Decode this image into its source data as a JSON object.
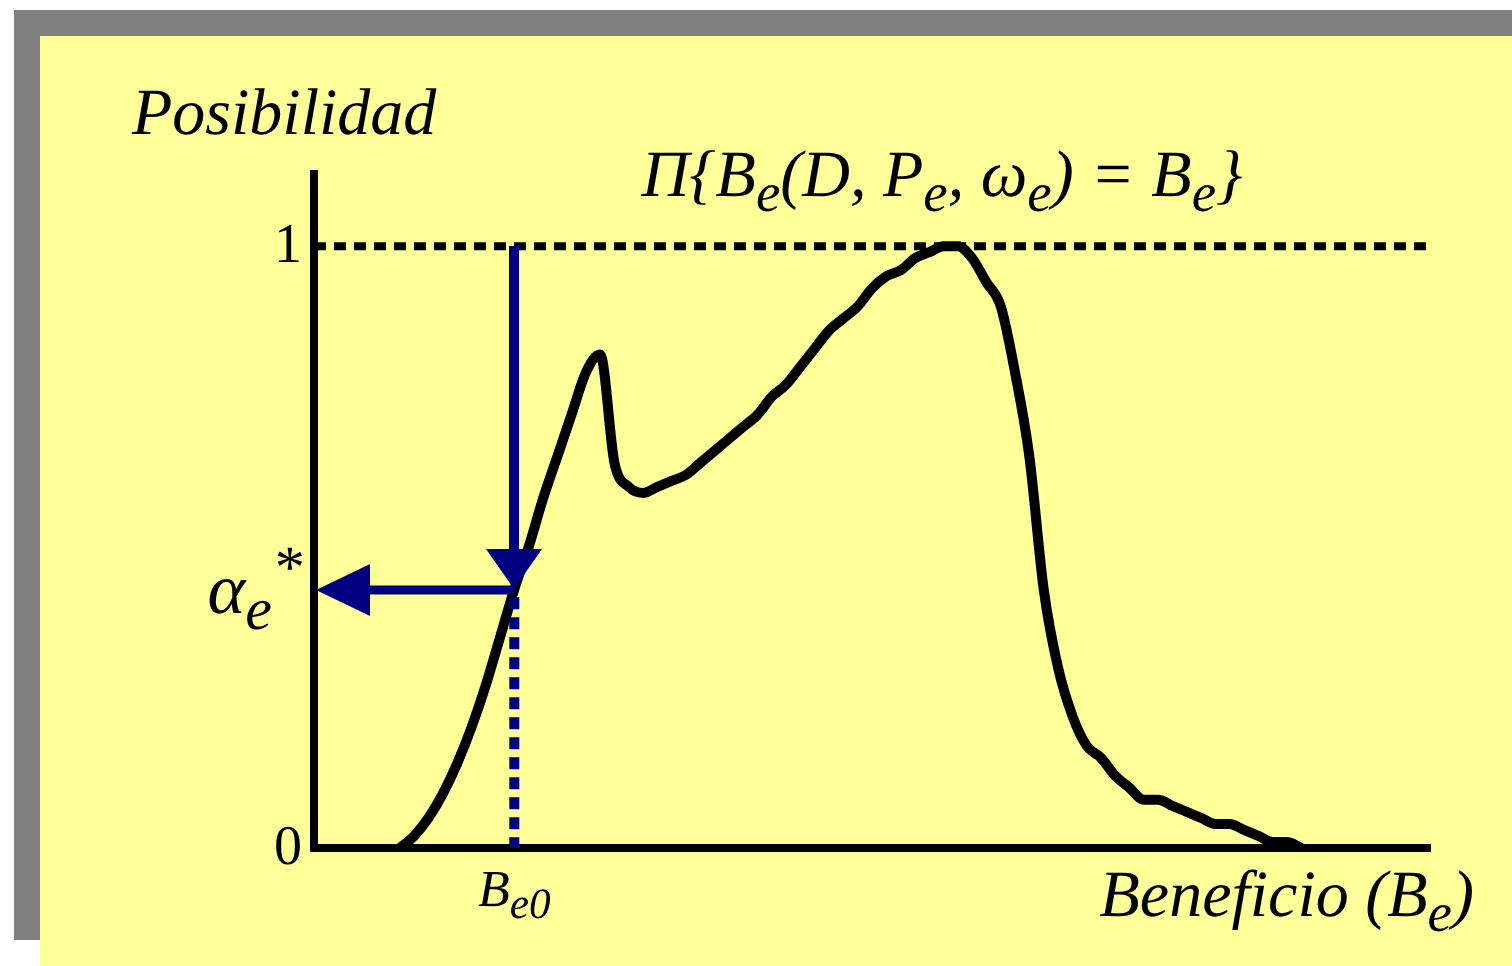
{
  "chart_data": {
    "type": "line",
    "title": "Π{B$_{e}$(D, P$_{e}$, ω$_{e}$) = B$_{e}$}",
    "ylabel": "Posibilidad",
    "xlabel": "Beneficio (B$_{e}$)",
    "categories": [
      null,
      null,
      null,
      null,
      null,
      null,
      null,
      null,
      null,
      null,
      null,
      null,
      null,
      null,
      "B$_{e0}$",
      null,
      null,
      null,
      null,
      null,
      null,
      null,
      null,
      null,
      null,
      null,
      null,
      null,
      null,
      null,
      null,
      null,
      null,
      null,
      null,
      null,
      null,
      null,
      null,
      null,
      null,
      null,
      null,
      null,
      null,
      null,
      null,
      null,
      null,
      null,
      null,
      null,
      null,
      null,
      null,
      null,
      null,
      null,
      null,
      null,
      null,
      null,
      null,
      null,
      null,
      null,
      null,
      null,
      null,
      null,
      null,
      null,
      null,
      null,
      null,
      null,
      null,
      null,
      null
    ],
    "values": [
      null,
      null,
      null,
      null,
      null,
      null,
      0,
      0.02,
      0.05,
      0.09,
      0.14,
      0.2,
      0.27,
      0.35,
      0.43,
      0.5,
      0.58,
      0.65,
      0.72,
      0.79,
      0.82,
      0.64,
      0.6,
      0.59,
      0.6,
      0.61,
      0.62,
      0.64,
      0.66,
      0.68,
      0.7,
      0.72,
      0.75,
      0.77,
      0.8,
      0.83,
      0.86,
      0.88,
      0.9,
      0.93,
      0.95,
      0.96,
      0.98,
      0.99,
      1,
      1,
      0.98,
      0.94,
      0.9,
      0.79,
      0.65,
      0.43,
      0.3,
      0.22,
      0.17,
      0.15,
      0.12,
      0.1,
      0.08,
      0.08,
      0.07,
      0.06,
      0.05,
      0.04,
      0.04,
      0.03,
      0.02,
      0.01,
      0.01,
      0,
      null,
      null,
      null,
      null,
      null,
      null,
      null,
      null,
      null
    ],
    "color": "#000000",
    "marker": "none",
    "ylim": [
      0,
      1.12
    ],
    "yticks": [
      0,
      {
        "value": 0.43,
        "label": "α$_{e}$$^{*}$"
      },
      1
    ],
    "ref_lines": [
      {
        "axis": "y",
        "value": 1,
        "color": "#000000",
        "line_style": "dotted"
      },
      {
        "axis": "x",
        "value": "B$_{e0}$",
        "color": "#000080",
        "line_style": "dotted"
      }
    ]
  }
}
